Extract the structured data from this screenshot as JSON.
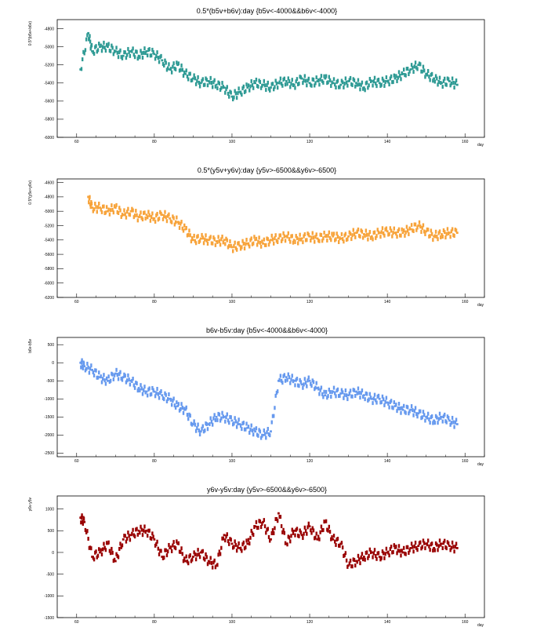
{
  "chart_data": [
    {
      "type": "scatter",
      "title": "0.5*(b5v+b6v):day {b5v<-4000&&b6v<-4000}",
      "xlabel": "day",
      "ylabel": "0.5*(b5v+b6v)",
      "xlim": [
        55,
        165
      ],
      "ylim": [
        -6000,
        -4700
      ],
      "xticks": [
        60,
        80,
        100,
        120,
        140,
        160
      ],
      "yticks": [
        -6000,
        -5800,
        -5600,
        -5400,
        -5200,
        -5000,
        -4800
      ],
      "color": "#2e9a94",
      "series": [
        {
          "x": [
            61,
            63,
            64,
            66,
            68,
            70,
            72,
            74,
            76,
            78,
            80,
            82,
            84,
            86,
            88,
            90,
            92,
            94,
            96,
            98,
            100,
            102,
            104,
            106,
            108,
            110,
            112,
            114,
            116,
            118,
            120,
            122,
            124,
            126,
            128,
            130,
            132,
            134,
            136,
            138,
            140,
            142,
            144,
            146,
            148,
            150,
            152,
            154,
            156,
            158
          ],
          "y": [
            -5250,
            -4850,
            -5050,
            -5000,
            -5000,
            -5050,
            -5100,
            -5050,
            -5100,
            -5050,
            -5080,
            -5150,
            -5250,
            -5200,
            -5300,
            -5350,
            -5400,
            -5380,
            -5420,
            -5450,
            -5550,
            -5500,
            -5450,
            -5400,
            -5420,
            -5450,
            -5400,
            -5380,
            -5420,
            -5350,
            -5400,
            -5380,
            -5350,
            -5400,
            -5420,
            -5380,
            -5400,
            -5450,
            -5380,
            -5400,
            -5380,
            -5350,
            -5300,
            -5250,
            -5200,
            -5300,
            -5350,
            -5400,
            -5380,
            -5420
          ]
        }
      ]
    },
    {
      "type": "scatter",
      "title": "0.5*(y5v+y6v):day {y5v>-6500&&y6v>-6500}",
      "xlabel": "day",
      "ylabel": "0.5*(y5v+y6v)",
      "xlim": [
        55,
        165
      ],
      "ylim": [
        -6200,
        -4550
      ],
      "xticks": [
        60,
        80,
        100,
        120,
        140,
        160
      ],
      "yticks": [
        -6200,
        -6000,
        -5800,
        -5600,
        -5400,
        -5200,
        -5000,
        -4800,
        -4600
      ],
      "color": "#f7a33a",
      "series": [
        {
          "x": [
            63,
            64,
            66,
            68,
            70,
            72,
            74,
            76,
            78,
            80,
            82,
            84,
            86,
            88,
            90,
            92,
            94,
            96,
            98,
            100,
            102,
            104,
            106,
            108,
            110,
            112,
            114,
            116,
            118,
            120,
            122,
            124,
            126,
            128,
            130,
            132,
            134,
            136,
            138,
            140,
            142,
            144,
            146,
            148,
            150,
            152,
            154,
            156,
            158
          ],
          "y": [
            -4800,
            -4950,
            -4950,
            -5000,
            -4950,
            -5050,
            -5000,
            -5080,
            -5050,
            -5100,
            -5050,
            -5100,
            -5150,
            -5250,
            -5400,
            -5380,
            -5400,
            -5420,
            -5400,
            -5500,
            -5480,
            -5450,
            -5400,
            -5450,
            -5400,
            -5380,
            -5350,
            -5400,
            -5380,
            -5350,
            -5380,
            -5350,
            -5350,
            -5380,
            -5350,
            -5300,
            -5320,
            -5350,
            -5300,
            -5280,
            -5300,
            -5300,
            -5250,
            -5200,
            -5280,
            -5350,
            -5320,
            -5300,
            -5300
          ]
        }
      ]
    },
    {
      "type": "scatter",
      "title": "b6v-b5v:day {b5v<-4000&&b6v<-4000}",
      "xlabel": "day",
      "ylabel": "b6v-b5v",
      "xlim": [
        55,
        165
      ],
      "ylim": [
        -2600,
        700
      ],
      "xticks": [
        60,
        80,
        100,
        120,
        140,
        160
      ],
      "yticks": [
        -2500,
        -2000,
        -1500,
        -1000,
        -500,
        0,
        500
      ],
      "color": "#6699ee",
      "series": [
        {
          "x": [
            61,
            62,
            64,
            66,
            68,
            70,
            72,
            74,
            76,
            78,
            80,
            82,
            84,
            86,
            88,
            90,
            92,
            94,
            96,
            98,
            100,
            102,
            104,
            106,
            108,
            110,
            112,
            114,
            116,
            118,
            120,
            122,
            124,
            126,
            128,
            130,
            132,
            134,
            136,
            138,
            140,
            142,
            144,
            146,
            148,
            150,
            152,
            154,
            156,
            158
          ],
          "y": [
            0,
            -100,
            -200,
            -400,
            -500,
            -300,
            -400,
            -500,
            -700,
            -800,
            -800,
            -900,
            -1000,
            -1200,
            -1300,
            -1700,
            -1900,
            -1700,
            -1500,
            -1500,
            -1600,
            -1700,
            -1800,
            -1900,
            -2000,
            -1900,
            -500,
            -400,
            -500,
            -600,
            -500,
            -700,
            -900,
            -800,
            -850,
            -900,
            -800,
            -900,
            -1000,
            -1000,
            -1100,
            -1200,
            -1300,
            -1300,
            -1400,
            -1500,
            -1600,
            -1500,
            -1600,
            -1700
          ]
        }
      ]
    },
    {
      "type": "scatter",
      "title": "y6v-y5v:day {y5v>-6500&&y6v>-6500}",
      "xlabel": "day",
      "ylabel": "y6v-y5v",
      "xlim": [
        55,
        165
      ],
      "ylim": [
        -1500,
        1300
      ],
      "xticks": [
        60,
        80,
        100,
        120,
        140,
        160
      ],
      "yticks": [
        -1500,
        -1000,
        -500,
        0,
        500,
        1000
      ],
      "color": "#990000",
      "series": [
        {
          "x": [
            61,
            62,
            64,
            66,
            68,
            70,
            72,
            74,
            76,
            78,
            80,
            82,
            84,
            86,
            88,
            90,
            92,
            94,
            96,
            98,
            100,
            102,
            104,
            106,
            108,
            110,
            112,
            114,
            116,
            118,
            120,
            122,
            124,
            126,
            128,
            130,
            132,
            134,
            136,
            138,
            140,
            142,
            144,
            146,
            148,
            150,
            152,
            154,
            156,
            158
          ],
          "y": [
            800,
            700,
            -100,
            0,
            200,
            -200,
            300,
            400,
            500,
            500,
            300,
            -100,
            100,
            200,
            -200,
            -100,
            0,
            -200,
            -300,
            400,
            200,
            100,
            200,
            600,
            700,
            300,
            900,
            200,
            500,
            400,
            600,
            300,
            700,
            300,
            200,
            -300,
            -200,
            -100,
            0,
            -100,
            0,
            100,
            0,
            100,
            150,
            200,
            100,
            200,
            150,
            100
          ]
        }
      ]
    }
  ]
}
